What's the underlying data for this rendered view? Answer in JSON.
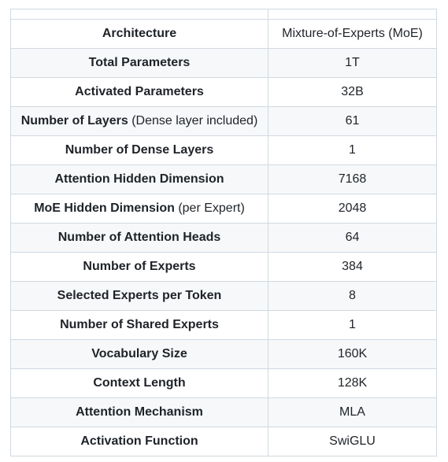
{
  "table": {
    "rows": [
      {
        "label": "Architecture",
        "note": "",
        "value": "Mixture-of-Experts (MoE)"
      },
      {
        "label": "Total Parameters",
        "note": "",
        "value": "1T"
      },
      {
        "label": "Activated Parameters",
        "note": "",
        "value": "32B"
      },
      {
        "label": "Number of Layers",
        "note": " (Dense layer included)",
        "value": "61"
      },
      {
        "label": "Number of Dense Layers",
        "note": "",
        "value": "1"
      },
      {
        "label": "Attention Hidden Dimension",
        "note": "",
        "value": "7168"
      },
      {
        "label": "MoE Hidden Dimension",
        "note": " (per Expert)",
        "value": "2048"
      },
      {
        "label": "Number of Attention Heads",
        "note": "",
        "value": "64"
      },
      {
        "label": "Number of Experts",
        "note": "",
        "value": "384"
      },
      {
        "label": "Selected Experts per Token",
        "note": "",
        "value": "8"
      },
      {
        "label": "Number of Shared Experts",
        "note": "",
        "value": "1"
      },
      {
        "label": "Vocabulary Size",
        "note": "",
        "value": "160K"
      },
      {
        "label": "Context Length",
        "note": "",
        "value": "128K"
      },
      {
        "label": "Attention Mechanism",
        "note": "",
        "value": "MLA"
      },
      {
        "label": "Activation Function",
        "note": "",
        "value": "SwiGLU"
      }
    ]
  },
  "colors": {
    "border": "#d1d9e0",
    "alt_row_background": "#f6f8fa",
    "text": "#1f2328"
  }
}
